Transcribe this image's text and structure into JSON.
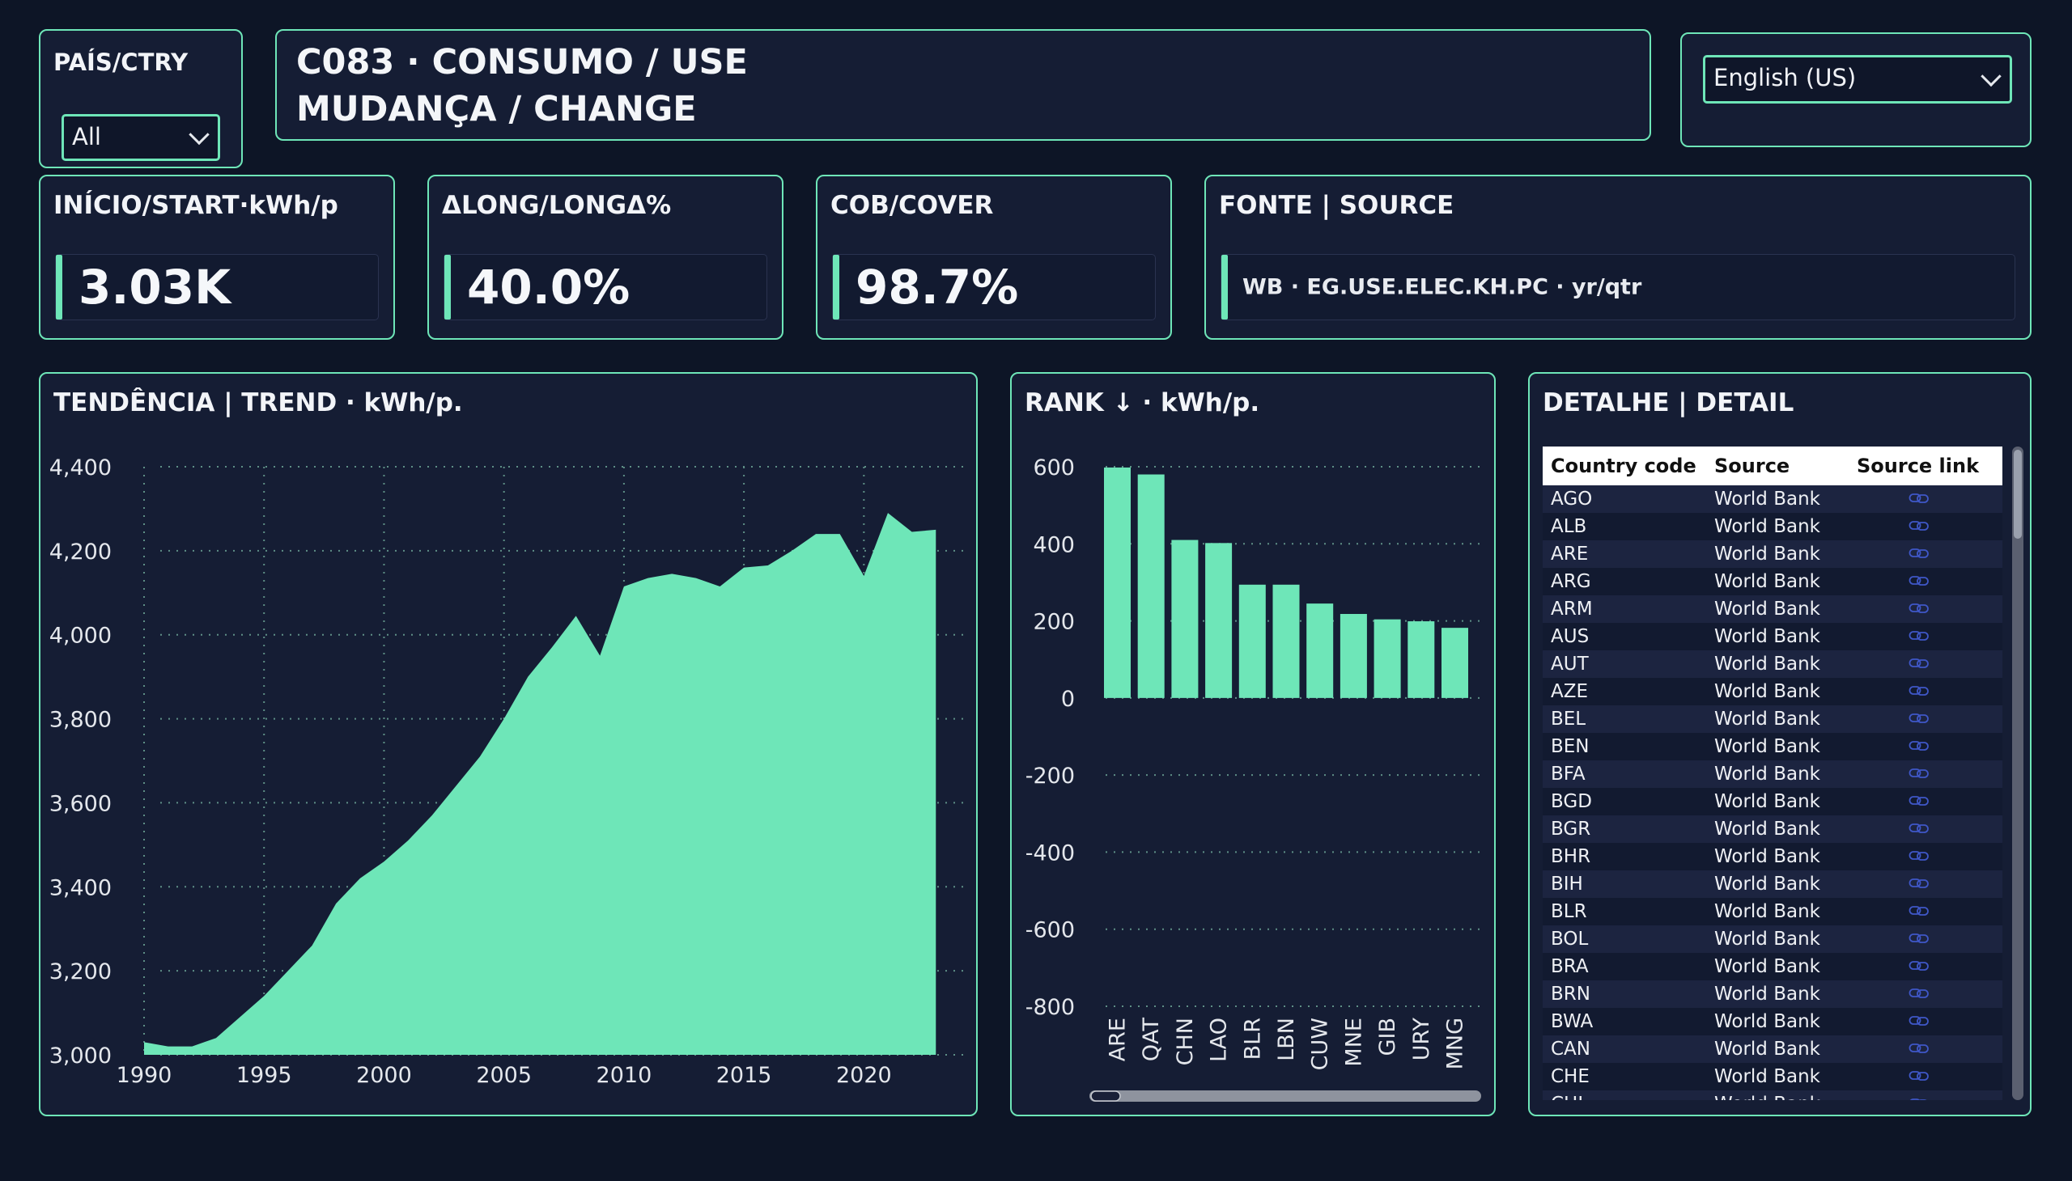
{
  "filter": {
    "label": "PAÍS/CTRY",
    "value": "All"
  },
  "header": {
    "title_line1": "C083 · CONSUMO / USE",
    "title_line2": "MUDANÇA / CHANGE"
  },
  "language": {
    "value": "English (US)"
  },
  "kpis": [
    {
      "label": "INÍCIO/START·kWh/p",
      "value": "3.03K"
    },
    {
      "label": "ΔLONG/LONGΔ%",
      "value": "40.0%"
    },
    {
      "label": "COB/COVER",
      "value": "98.7%"
    }
  ],
  "source_card": {
    "label": "FONTE | SOURCE",
    "value": "WB · EG.USE.ELEC.KH.PC · yr/qtr"
  },
  "colors": {
    "accent": "#6ee6b8",
    "background": "#0d1526",
    "panel": "#151d34"
  },
  "chart_data": [
    {
      "type": "area",
      "title": "TENDÊNCIA | TREND · kWh/p.",
      "ylim": [
        3000,
        4400
      ],
      "yticks": [
        "3,000",
        "3,200",
        "3,400",
        "3,600",
        "3,800",
        "4,000",
        "4,200",
        "4,400"
      ],
      "xticks": [
        "1990",
        "1995",
        "2000",
        "2005",
        "2010",
        "2015",
        "2020"
      ],
      "grid": true,
      "x": [
        1990,
        1991,
        1992,
        1993,
        1994,
        1995,
        1996,
        1997,
        1998,
        1999,
        2000,
        2001,
        2002,
        2003,
        2004,
        2005,
        2006,
        2007,
        2008,
        2009,
        2010,
        2011,
        2012,
        2013,
        2014,
        2015,
        2016,
        2017,
        2018,
        2019,
        2020,
        2021,
        2022,
        2023
      ],
      "values": [
        3030,
        3020,
        3020,
        3040,
        3090,
        3140,
        3200,
        3260,
        3360,
        3420,
        3460,
        3510,
        3570,
        3640,
        3710,
        3800,
        3900,
        3970,
        4045,
        3950,
        4115,
        4135,
        4145,
        4135,
        4115,
        4160,
        4165,
        4200,
        4240,
        4240,
        4140,
        4290,
        4245,
        4250
      ]
    },
    {
      "type": "bar",
      "title": "RANK ↓ · kWh/p.",
      "ylim": [
        -800,
        600
      ],
      "yticks": [
        "600",
        "400",
        "200",
        "0",
        "-200",
        "-400",
        "-600",
        "-800"
      ],
      "grid": true,
      "categories": [
        "ARE",
        "QAT",
        "CHN",
        "LAO",
        "BLR",
        "LBN",
        "CUW",
        "MNE",
        "GIB",
        "URY",
        "MNG"
      ],
      "values": [
        598,
        580,
        410,
        402,
        294,
        294,
        245,
        218,
        204,
        199,
        182
      ]
    }
  ],
  "detail": {
    "title": "DETALHE | DETAIL",
    "columns": [
      "Country code",
      "Source",
      "Source link"
    ],
    "rows": [
      [
        "AGO",
        "World Bank"
      ],
      [
        "ALB",
        "World Bank"
      ],
      [
        "ARE",
        "World Bank"
      ],
      [
        "ARG",
        "World Bank"
      ],
      [
        "ARM",
        "World Bank"
      ],
      [
        "AUS",
        "World Bank"
      ],
      [
        "AUT",
        "World Bank"
      ],
      [
        "AZE",
        "World Bank"
      ],
      [
        "BEL",
        "World Bank"
      ],
      [
        "BEN",
        "World Bank"
      ],
      [
        "BFA",
        "World Bank"
      ],
      [
        "BGD",
        "World Bank"
      ],
      [
        "BGR",
        "World Bank"
      ],
      [
        "BHR",
        "World Bank"
      ],
      [
        "BIH",
        "World Bank"
      ],
      [
        "BLR",
        "World Bank"
      ],
      [
        "BOL",
        "World Bank"
      ],
      [
        "BRA",
        "World Bank"
      ],
      [
        "BRN",
        "World Bank"
      ],
      [
        "BWA",
        "World Bank"
      ],
      [
        "CAN",
        "World Bank"
      ],
      [
        "CHE",
        "World Bank"
      ],
      [
        "CHL",
        "World Bank"
      ]
    ]
  }
}
